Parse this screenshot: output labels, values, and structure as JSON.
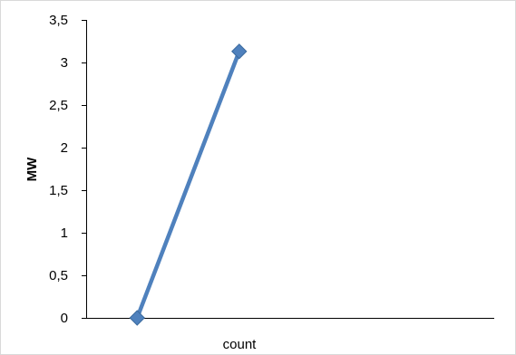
{
  "chart_data": {
    "type": "line",
    "title": "",
    "xlabel": "count",
    "ylabel": "MW",
    "ylim": [
      0,
      3.5
    ],
    "yticks": [
      {
        "value": 0,
        "label": "0"
      },
      {
        "value": 0.5,
        "label": "0,5"
      },
      {
        "value": 1,
        "label": "1"
      },
      {
        "value": 1.5,
        "label": "1,5"
      },
      {
        "value": 2,
        "label": "2"
      },
      {
        "value": 2.5,
        "label": "2,5"
      },
      {
        "value": 3,
        "label": "3"
      },
      {
        "value": 3.5,
        "label": "3,5"
      }
    ],
    "grid": false,
    "legend": "none",
    "series": [
      {
        "color": "#4f81bd",
        "marker": "diamond",
        "points": [
          {
            "x": 1,
            "y": 0
          },
          {
            "x": 2,
            "y": 3.13
          }
        ]
      }
    ]
  }
}
